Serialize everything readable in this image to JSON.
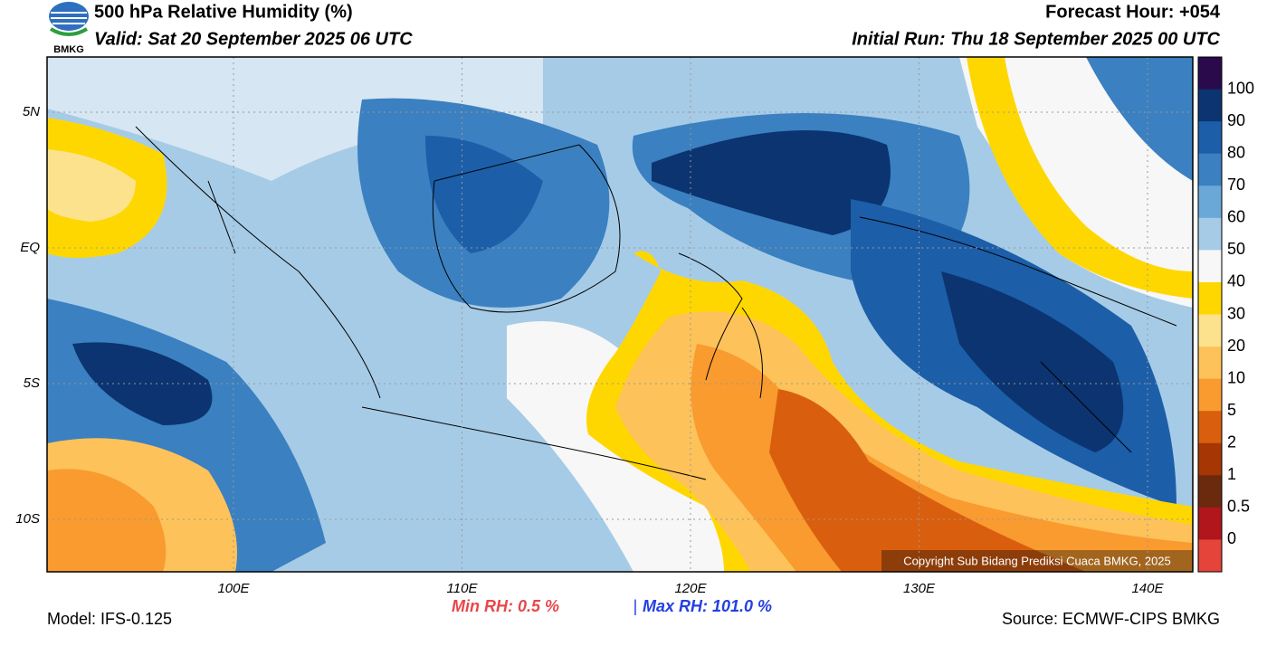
{
  "header": {
    "title": "500 hPa Relative Humidity (%)",
    "valid": "Valid: Sat 20 September 2025 06 UTC",
    "forecast_hour": "Forecast Hour: +054",
    "initial_run": "Initial Run: Thu 18 September 2025 00 UTC",
    "logo_text": "BMKG"
  },
  "axes": {
    "lat_labels": [
      "5N",
      "EQ",
      "5S",
      "10S"
    ],
    "lon_labels": [
      "100E",
      "110E",
      "120E",
      "130E",
      "140E"
    ]
  },
  "colorbar": {
    "labels": [
      "100",
      "90",
      "80",
      "70",
      "60",
      "50",
      "40",
      "30",
      "20",
      "10",
      "5",
      "2",
      "1",
      "0.5",
      "0"
    ]
  },
  "copyright": "Copyright Sub Bidang Prediksi Cuaca BMKG, 2025",
  "footer": {
    "min_rh": "Min RH:   0.5 %",
    "separator": "|",
    "max_rh": "Max RH: 101.0 %",
    "model": "Model: IFS-0.125",
    "source": "Source: ECMWF-CIPS BMKG"
  }
}
